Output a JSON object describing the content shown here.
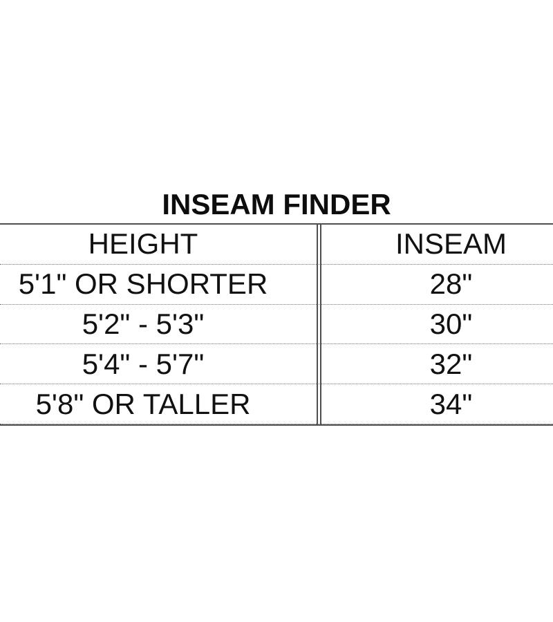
{
  "title": "INSEAM FINDER",
  "table": {
    "headers": {
      "height": "HEIGHT",
      "inseam": "INSEAM"
    },
    "rows": [
      {
        "height": "5'1\" OR SHORTER",
        "inseam": "28\""
      },
      {
        "height": "5'2\" - 5'3\"",
        "inseam": "30\""
      },
      {
        "height": "5'4\" - 5'7\"",
        "inseam": "32\""
      },
      {
        "height": "5'8\" OR TALLER",
        "inseam": "34\""
      }
    ]
  },
  "colors": {
    "background": "#ffffff",
    "text": "#111111",
    "solid_border": "#4f4f4f",
    "dotted_border": "#767676"
  }
}
